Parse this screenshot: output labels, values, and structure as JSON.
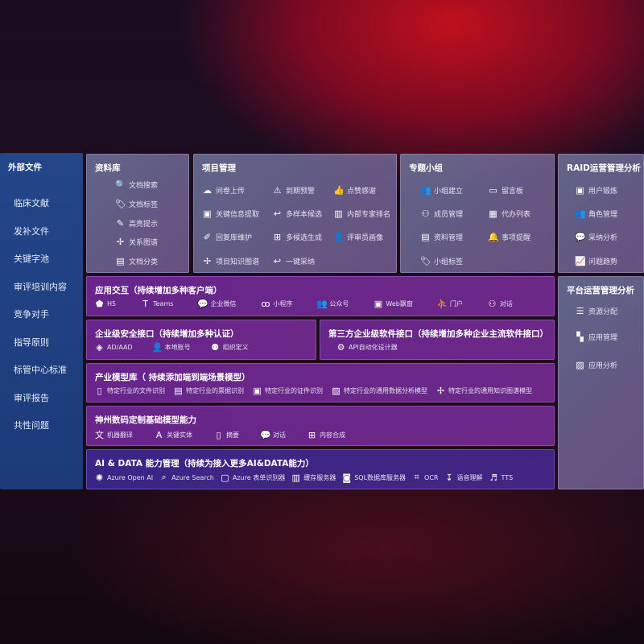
{
  "sidebar": {
    "title": "外部文件",
    "items": [
      "临床文献",
      "发补文件",
      "关键字池",
      "审评培训内容",
      "竞争对手",
      "指导原则",
      "标管中心标准",
      "审评报告",
      "共性问题"
    ]
  },
  "panels": [
    {
      "id": "library",
      "title": "资料库",
      "items": [
        [
          "文档搜索",
          "file-search-icon"
        ],
        [
          "文档标签",
          "tag-icon"
        ],
        [
          "高亮提示",
          "pen-icon"
        ],
        [
          "关系图谱",
          "graph-icon"
        ],
        [
          "文档分类",
          "folder-icon"
        ]
      ]
    },
    {
      "id": "project",
      "title": "项目管理",
      "items": [
        [
          "问卷上传",
          "cloud-upload-icon"
        ],
        [
          "到期预警",
          "alarm-icon"
        ],
        [
          "点赞感谢",
          "thumbs-up-icon"
        ],
        [
          "关键信息提取",
          "window-icon"
        ],
        [
          "多样本候选",
          "reply-icon"
        ],
        [
          "内部专家排名",
          "ranking-icon"
        ],
        [
          "回复库维护",
          "edit-icon"
        ],
        [
          "多候选生成",
          "puzzle-icon"
        ],
        [
          "评审员画像",
          "user-icon"
        ],
        [
          "项目知识图谱",
          "graph-icon"
        ],
        [
          "一键采纳",
          "reply-icon"
        ]
      ]
    },
    {
      "id": "group",
      "title": "专题小组",
      "items": [
        [
          "小组建立",
          "users-icon"
        ],
        [
          "留言板",
          "bbs-icon"
        ],
        [
          "成员管理",
          "user-add-icon"
        ],
        [
          "代办列表",
          "clipboard-icon"
        ],
        [
          "资料管理",
          "folder-icon"
        ],
        [
          "事项提醒",
          "bell-icon"
        ],
        [
          "小组标签",
          "tag-icon"
        ]
      ]
    },
    {
      "id": "raid",
      "title": "RAID运营管理分析",
      "items": [
        [
          "用户锻炼",
          "id-card-icon"
        ],
        [
          "角色管理",
          "users-icon"
        ],
        [
          "采纳分析",
          "qa-icon"
        ],
        [
          "问题趋势",
          "trend-icon"
        ]
      ]
    },
    {
      "id": "platform",
      "title": "平台运营管理分析",
      "items": [
        [
          "资源分配",
          "list-icon"
        ],
        [
          "应用管理",
          "apps-icon"
        ],
        [
          "应用分析",
          "chart-icon"
        ]
      ]
    },
    {
      "id": "interaction",
      "title": "应用交互（持续增加多种客户端）",
      "items": [
        [
          "H5",
          "html5-icon"
        ],
        [
          "Teams",
          "teams-icon"
        ],
        [
          "企业微信",
          "wechat-icon"
        ],
        [
          "小程序",
          "miniprogram-icon"
        ],
        [
          "公众号",
          "users-icon"
        ],
        [
          "Web飘窗",
          "window-icon"
        ],
        [
          "门户",
          "portal-icon"
        ],
        [
          "对话",
          "chat-users-icon"
        ]
      ]
    },
    {
      "id": "security",
      "title": "企业级安全接口（持续增加多种认证）",
      "items": [
        [
          "AD/AAD",
          "diamond-icon"
        ],
        [
          "本地账号",
          "user-icon"
        ],
        [
          "组织定义",
          "org-icon"
        ]
      ]
    },
    {
      "id": "thirdparty",
      "title": "第三方企业级软件接口（持续增加多种企业主流软件接口）",
      "items": [
        [
          "API自动化设计器",
          "gear-icon"
        ]
      ]
    },
    {
      "id": "industry",
      "title": "产业模型库（ 持续添加端到端场景模型）",
      "items": [
        [
          "特定行业的文件识别",
          "file-icon"
        ],
        [
          "特定行业的票据识别",
          "receipt-icon"
        ],
        [
          "特定行业的证件识别",
          "id-card-icon"
        ],
        [
          "特定行业的通用数据分析模型",
          "chart-icon"
        ],
        [
          "特定行业的通用知识图谱模型",
          "graph-icon"
        ]
      ]
    },
    {
      "id": "basemodel",
      "title": "神州数码定制基础模型能力",
      "items": [
        [
          "机器翻译",
          "translate-icon"
        ],
        [
          "关键实体",
          "entity-icon"
        ],
        [
          "摘要",
          "document-icon"
        ],
        [
          "对话",
          "chat-icon"
        ],
        [
          "内容合成",
          "puzzle-icon"
        ]
      ]
    },
    {
      "id": "aidata",
      "title": "AI & DATA 能力管理（持续为接入更多AI&DATA能力）",
      "items": [
        [
          "Azure Open AI",
          "openai-icon"
        ],
        [
          "Azure Search",
          "search-icon"
        ],
        [
          "Azure 表单识别器",
          "form-icon"
        ],
        [
          "缓存服务器",
          "server-icon"
        ],
        [
          "SQL数据库服务器",
          "database-icon"
        ],
        [
          "OCR",
          "ocr-icon"
        ],
        [
          "语音理解",
          "speech-icon"
        ],
        [
          "TTS",
          "tts-icon"
        ]
      ]
    }
  ]
}
